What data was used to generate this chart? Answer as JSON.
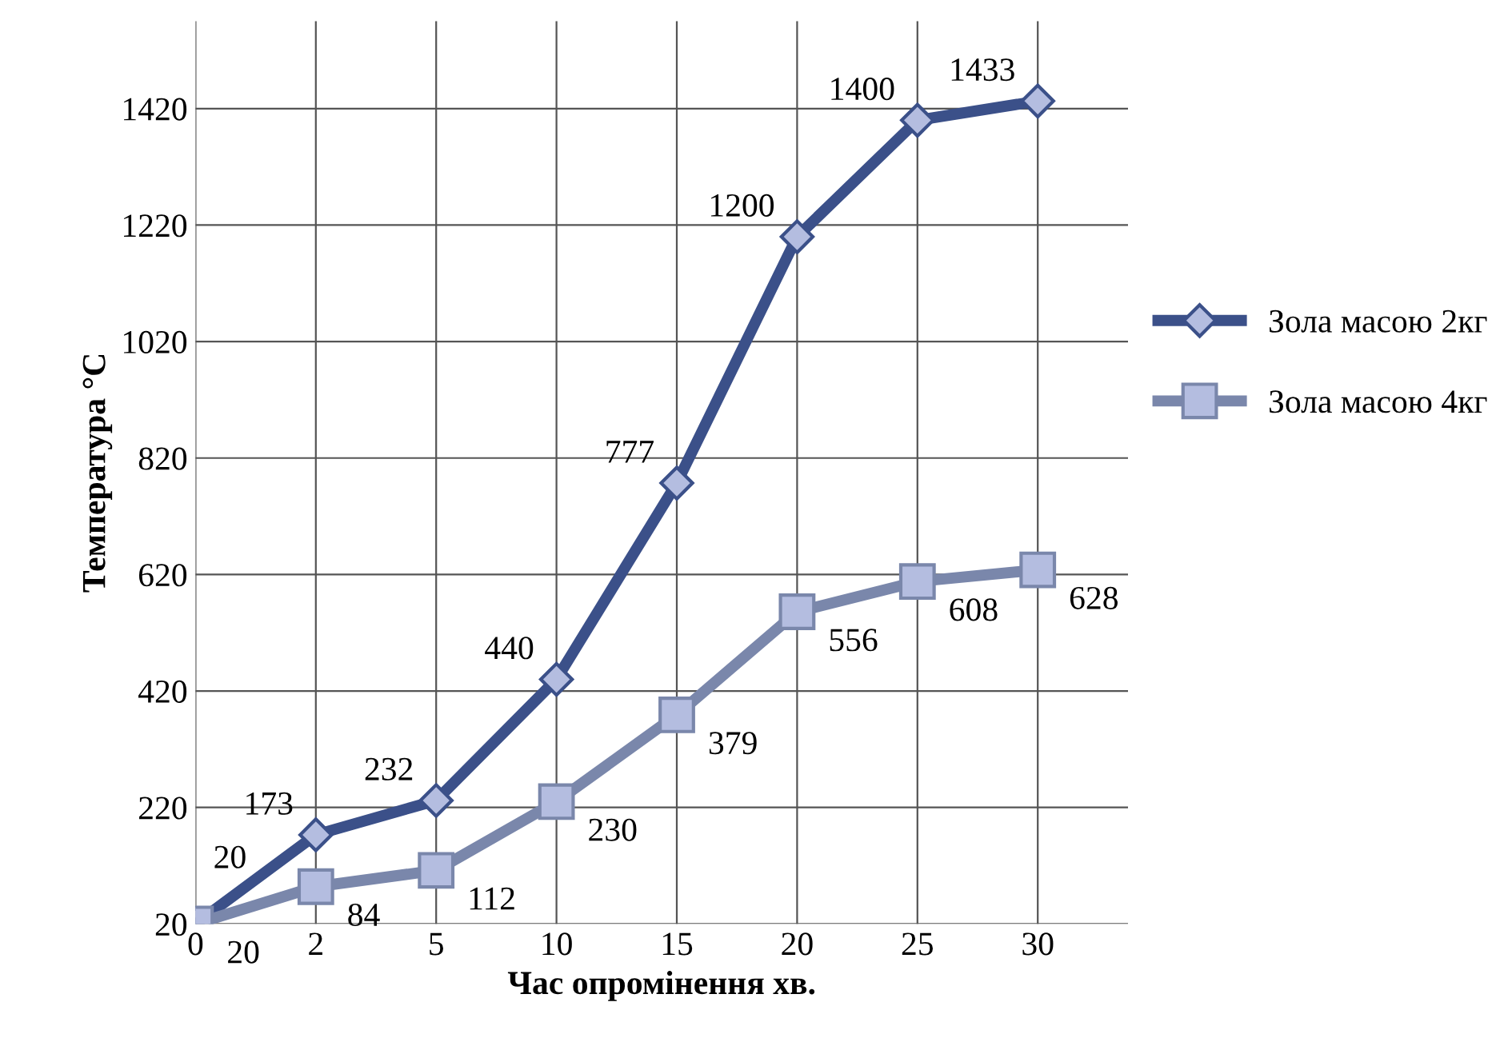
{
  "chart_data": {
    "type": "line",
    "xlabel": "Час опромінення хв.",
    "ylabel": "Температура °C",
    "categories": [
      "0",
      "2",
      "5",
      "10",
      "15",
      "20",
      "25",
      "30"
    ],
    "series": [
      {
        "name": "Зола масою 2кг",
        "color": "#3b5089",
        "marker": "diamond",
        "values": [
          20,
          173,
          232,
          440,
          777,
          1200,
          1400,
          1433
        ]
      },
      {
        "name": "Зола масою 4кг",
        "color": "#7a87ab",
        "marker": "square",
        "values": [
          20,
          84,
          112,
          230,
          379,
          556,
          608,
          628
        ]
      }
    ],
    "ylim": [
      20,
      1570
    ],
    "yticks": [
      20,
      220,
      420,
      620,
      820,
      1020,
      1220,
      1420
    ],
    "grid": true,
    "legend": "right",
    "data_labels": true,
    "line_style": "solid"
  }
}
